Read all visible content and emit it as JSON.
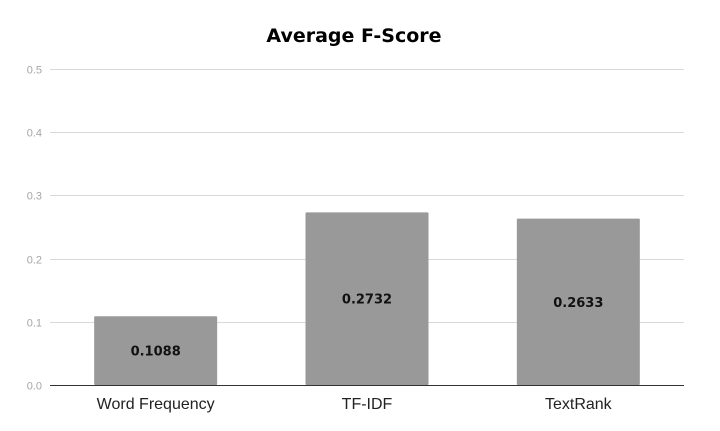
{
  "chart_data": {
    "type": "bar",
    "title": "Average F-Score",
    "categories": [
      "Word Frequency",
      "TF-IDF",
      "TextRank"
    ],
    "values": [
      0.1088,
      0.2732,
      0.2633
    ],
    "data_labels": [
      "0.1088",
      "0.2732",
      "0.2633"
    ],
    "yticks": [
      "0.0",
      "0.1",
      "0.2",
      "0.3",
      "0.4",
      "0.5"
    ],
    "ylim": [
      0,
      0.5
    ],
    "grid": true,
    "bar_color": "#999999",
    "xlabel": "",
    "ylabel": ""
  }
}
